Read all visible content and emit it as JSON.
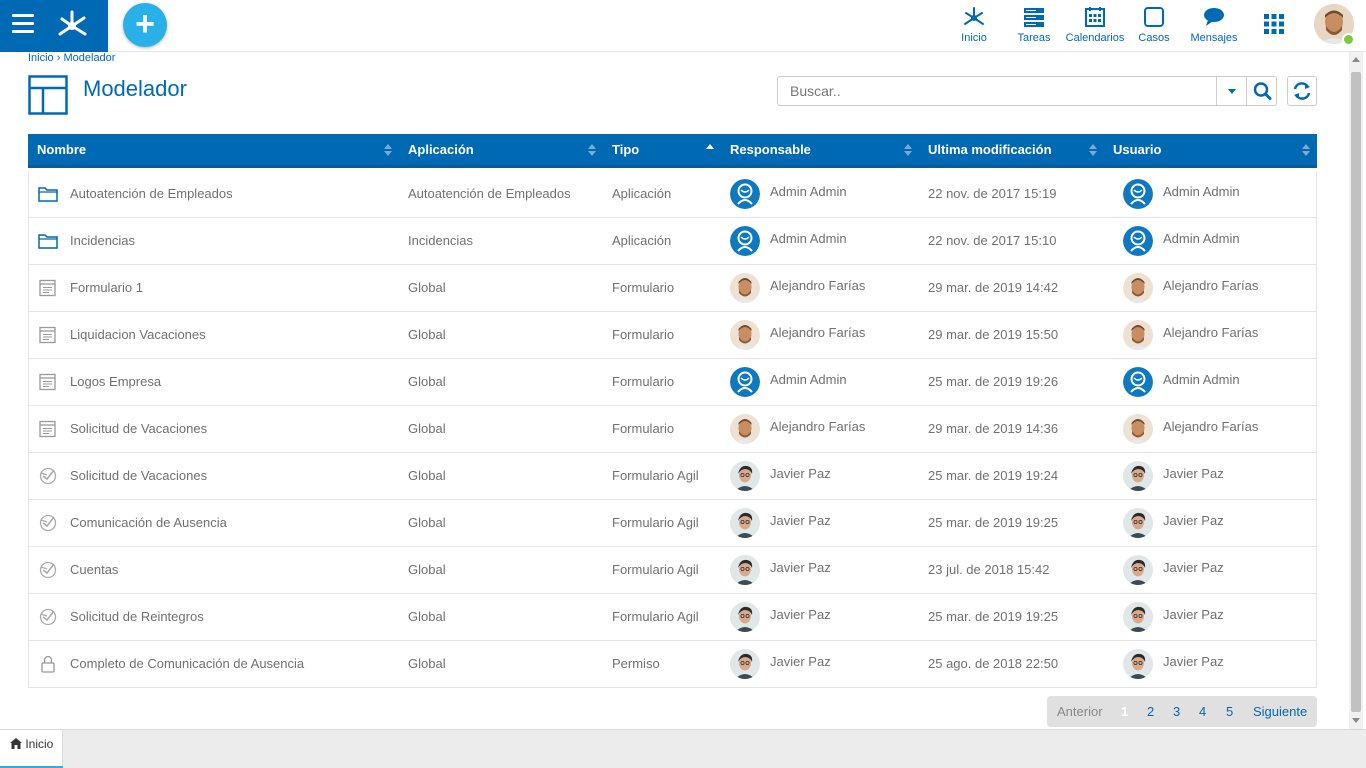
{
  "colors": {
    "brand": "#0069b4",
    "accent": "#2ab0e8",
    "online": "#7cc842"
  },
  "topnav": {
    "items": [
      {
        "label": "Inicio",
        "icon": "network-icon"
      },
      {
        "label": "Tareas",
        "icon": "tasks-icon"
      },
      {
        "label": "Calendarios",
        "icon": "calendar-icon"
      },
      {
        "label": "Casos",
        "icon": "cases-icon"
      },
      {
        "label": "Mensajes",
        "icon": "chat-icon"
      }
    ]
  },
  "breadcrumb": {
    "home": "Inicio",
    "separator": "›",
    "current": "Modelador"
  },
  "page": {
    "title": "Modelador"
  },
  "search": {
    "placeholder": "Buscar.."
  },
  "table": {
    "columns": [
      "Nombre",
      "Aplicación",
      "Tipo",
      "Responsable",
      "Ultima modificación",
      "Usuario"
    ],
    "sorted_column": "Tipo",
    "rows": [
      {
        "icon": "folder-icon",
        "name": "Autoatención de Empleados",
        "app": "Autoatención de Empleados",
        "tipo": "Aplicación",
        "resp": "Admin Admin",
        "resp_avatar": "admin",
        "date": "22 nov. de 2017 15:19",
        "user": "Admin Admin",
        "user_avatar": "admin"
      },
      {
        "icon": "folder-icon",
        "name": "Incidencias",
        "app": "Incidencias",
        "tipo": "Aplicación",
        "resp": "Admin Admin",
        "resp_avatar": "admin",
        "date": "22 nov. de 2017 15:10",
        "user": "Admin Admin",
        "user_avatar": "admin"
      },
      {
        "icon": "form-icon",
        "name": "Formulario 1",
        "app": "Global",
        "tipo": "Formulario",
        "resp": "Alejandro Farías",
        "resp_avatar": "alej",
        "date": "29 mar. de 2019 14:42",
        "user": "Alejandro Farías",
        "user_avatar": "alej"
      },
      {
        "icon": "form-icon",
        "name": "Liquidacion Vacaciones",
        "app": "Global",
        "tipo": "Formulario",
        "resp": "Alejandro Farías",
        "resp_avatar": "alej",
        "date": "29 mar. de 2019 15:50",
        "user": "Alejandro Farías",
        "user_avatar": "alej"
      },
      {
        "icon": "form-icon",
        "name": "Logos Empresa",
        "app": "Global",
        "tipo": "Formulario",
        "resp": "Admin Admin",
        "resp_avatar": "admin",
        "date": "25 mar. de 2019 19:26",
        "user": "Admin Admin",
        "user_avatar": "admin"
      },
      {
        "icon": "form-icon",
        "name": "Solicitud de Vacaciones",
        "app": "Global",
        "tipo": "Formulario",
        "resp": "Alejandro Farías",
        "resp_avatar": "alej",
        "date": "29 mar. de 2019 14:36",
        "user": "Alejandro Farías",
        "user_avatar": "alej"
      },
      {
        "icon": "agile-form-icon",
        "name": "Solicitud de Vacaciones",
        "app": "Global",
        "tipo": "Formulario Agil",
        "resp": "Javier Paz",
        "resp_avatar": "javier",
        "date": "25 mar. de 2019 19:24",
        "user": "Javier Paz",
        "user_avatar": "javier"
      },
      {
        "icon": "agile-form-icon",
        "name": "Comunicación de Ausencia",
        "app": "Global",
        "tipo": "Formulario Agil",
        "resp": "Javier Paz",
        "resp_avatar": "javier",
        "date": "25 mar. de 2019 19:25",
        "user": "Javier Paz",
        "user_avatar": "javier"
      },
      {
        "icon": "agile-form-icon",
        "name": "Cuentas",
        "app": "Global",
        "tipo": "Formulario Agil",
        "resp": "Javier Paz",
        "resp_avatar": "javier",
        "date": "23 jul. de 2018 15:42",
        "user": "Javier Paz",
        "user_avatar": "javier"
      },
      {
        "icon": "agile-form-icon",
        "name": "Solicitud de Reintegros",
        "app": "Global",
        "tipo": "Formulario Agil",
        "resp": "Javier Paz",
        "resp_avatar": "javier",
        "date": "25 mar. de 2019 19:25",
        "user": "Javier Paz",
        "user_avatar": "javier"
      },
      {
        "icon": "lock-icon",
        "name": "Completo de Comunicación de Ausencia",
        "app": "Global",
        "tipo": "Permiso",
        "resp": "Javier Paz",
        "resp_avatar": "javier",
        "date": "25 ago. de 2018 22:50",
        "user": "Javier Paz",
        "user_avatar": "javier"
      }
    ]
  },
  "pagination": {
    "prev": "Anterior",
    "pages": [
      "1",
      "2",
      "3",
      "4",
      "5"
    ],
    "current": "1",
    "next": "Siguiente"
  },
  "tabs": [
    {
      "label": "Inicio",
      "icon": "home-icon"
    }
  ]
}
